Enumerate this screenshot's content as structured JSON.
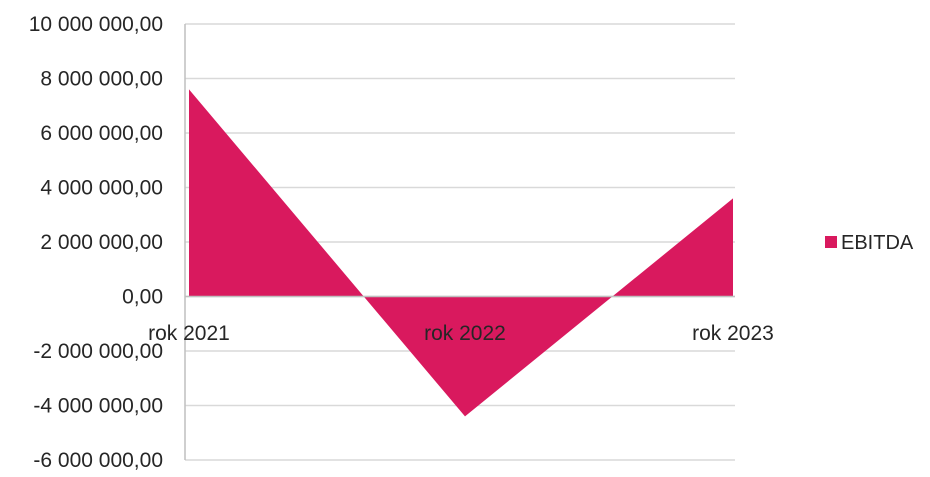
{
  "chart_data": {
    "type": "area",
    "categories": [
      "rok 2021",
      "rok 2022",
      "rok 2023"
    ],
    "series": [
      {
        "name": "EBITDA",
        "values": [
          7600000,
          -4400000,
          3600000
        ]
      }
    ],
    "ylim": [
      -6000000,
      10000000
    ],
    "yticks": [
      10000000,
      8000000,
      6000000,
      4000000,
      2000000,
      0,
      -2000000,
      -4000000,
      -6000000
    ],
    "ytick_labels": [
      "10 000 000,00",
      "8 000 000,00",
      "6 000 000,00",
      "4 000 000,00",
      "2 000 000,00",
      "0,00",
      "-2 000 000,00",
      "-4 000 000,00",
      "-6 000 000,00"
    ],
    "grid": true,
    "legend": "right",
    "colors": {
      "series": "#D9195E",
      "grid": "#D9D9D9",
      "axis": "#BFBFBF",
      "text": "#262626"
    }
  }
}
